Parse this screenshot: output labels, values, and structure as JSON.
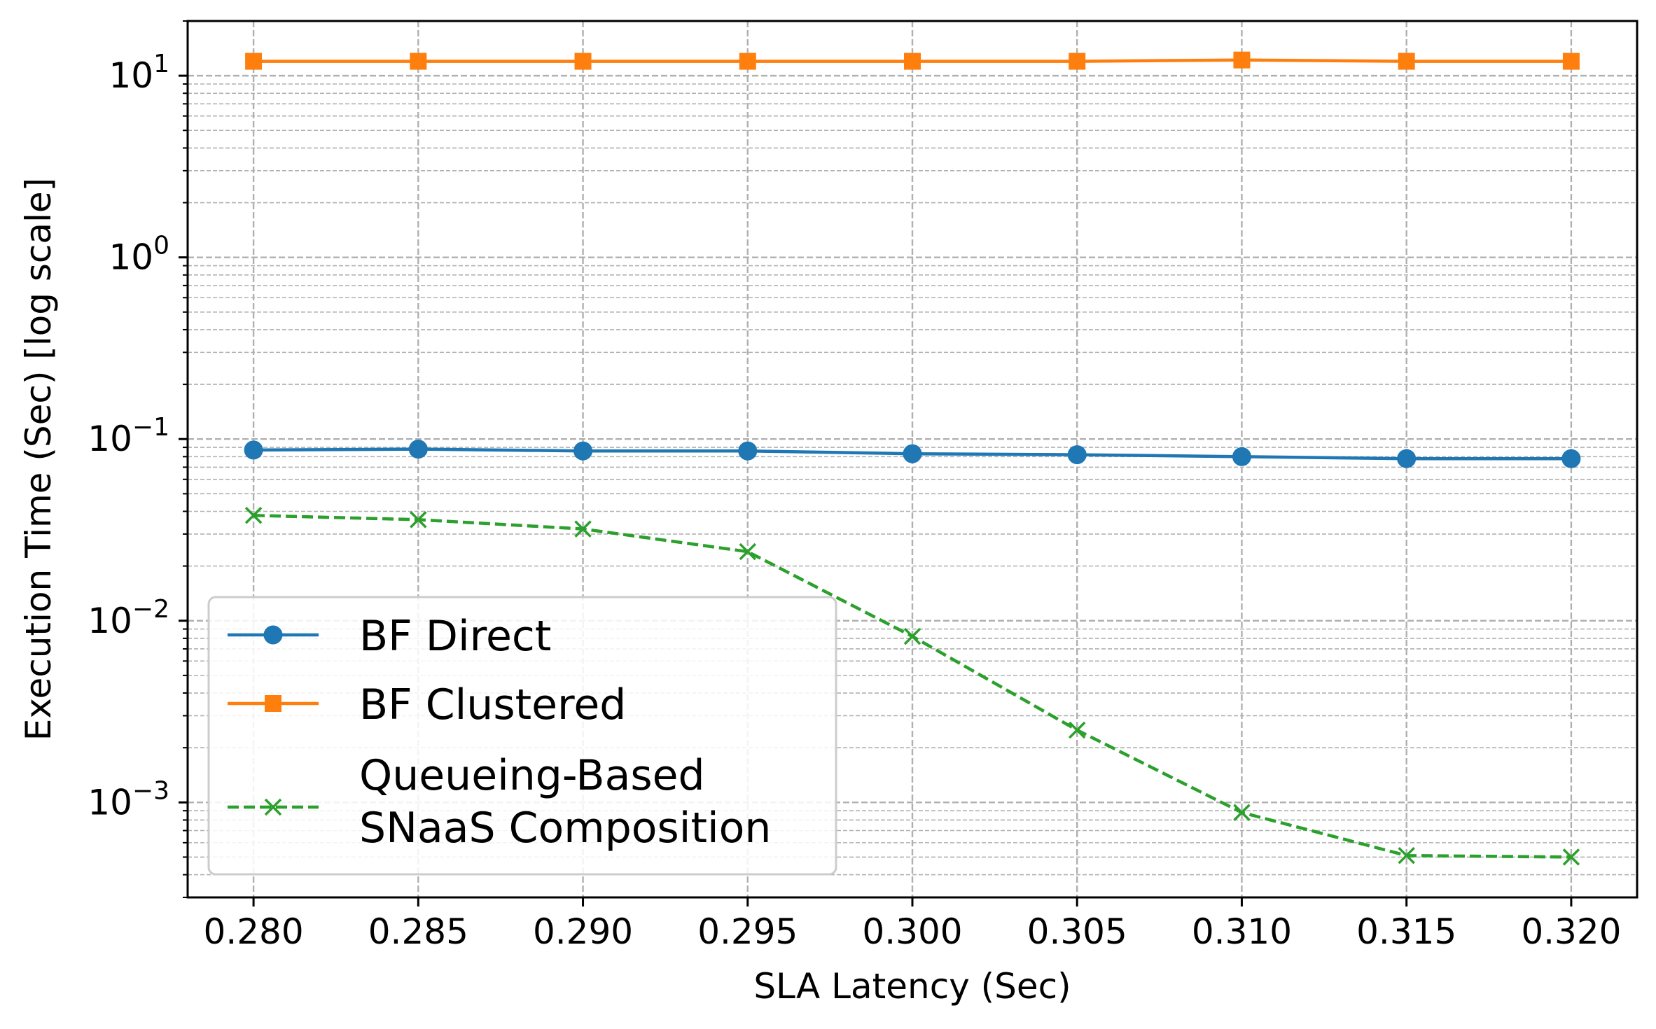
{
  "chart_data": {
    "type": "line",
    "xlabel": "SLA Latency (Sec)",
    "ylabel": "Execution Time (Sec) [log scale]",
    "x": [
      0.28,
      0.285,
      0.29,
      0.295,
      0.3,
      0.305,
      0.31,
      0.315,
      0.32
    ],
    "x_tick_labels": [
      "0.280",
      "0.285",
      "0.290",
      "0.295",
      "0.300",
      "0.305",
      "0.310",
      "0.315",
      "0.320"
    ],
    "xlim": [
      0.278,
      0.322
    ],
    "ylim": [
      0.0003,
      20
    ],
    "yscale": "log",
    "y_ticks": [
      {
        "value": 10,
        "base": "10",
        "exp": "1"
      },
      {
        "value": 1,
        "base": "10",
        "exp": "0"
      },
      {
        "value": 0.1,
        "base": "10",
        "exp": "−1"
      },
      {
        "value": 0.01,
        "base": "10",
        "exp": "−2"
      },
      {
        "value": 0.001,
        "base": "10",
        "exp": "−3"
      }
    ],
    "grid": true,
    "legend_position": "lower-left",
    "series": [
      {
        "name": "BF Direct",
        "color": "#1f77b4",
        "marker": "circle",
        "linestyle": "solid",
        "values": [
          0.087,
          0.088,
          0.086,
          0.086,
          0.083,
          0.082,
          0.08,
          0.078,
          0.078
        ]
      },
      {
        "name": "BF Clustered",
        "color": "#ff7f0e",
        "marker": "square",
        "linestyle": "solid",
        "values": [
          12,
          12,
          12,
          12,
          12,
          12,
          12.2,
          12,
          12
        ]
      },
      {
        "name": "Queueing-Based SNaaS Composition",
        "name_lines": [
          "Queueing-Based",
          "SNaaS Composition"
        ],
        "color": "#2ca02c",
        "marker": "x",
        "linestyle": "dashed",
        "values": [
          0.038,
          0.036,
          0.032,
          0.024,
          0.0082,
          0.0025,
          0.00088,
          0.00051,
          0.0005
        ]
      }
    ]
  }
}
